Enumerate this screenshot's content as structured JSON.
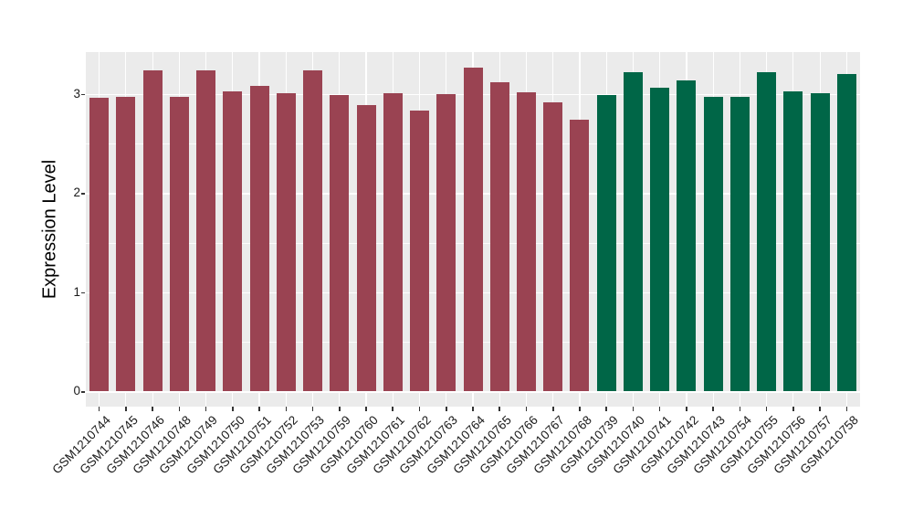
{
  "figure": {
    "background": "#FFFFFF",
    "panel_background": "#EBEBEB",
    "grid_color": "#FFFFFF",
    "axis_text_color": "#1A1A1A",
    "tick_mark_color": "#333333"
  },
  "chart_data": {
    "type": "bar",
    "title": "",
    "xlabel": "",
    "ylabel": "Expression Level",
    "ylim": [
      -0.15,
      3.42
    ],
    "yticks": [
      0,
      1,
      2,
      3
    ],
    "yticks_minor": [
      0.5,
      1.5,
      2.5
    ],
    "grid": "on",
    "legend_position": "none",
    "x_tick_angle_deg": 45,
    "group_colors": {
      "group1": "#9A4352",
      "group2": "#006647"
    },
    "bars": [
      {
        "label": "GSM1210744",
        "value": 2.96,
        "group": "group1"
      },
      {
        "label": "GSM1210745",
        "value": 2.97,
        "group": "group1"
      },
      {
        "label": "GSM1210746",
        "value": 3.24,
        "group": "group1"
      },
      {
        "label": "GSM1210748",
        "value": 2.97,
        "group": "group1"
      },
      {
        "label": "GSM1210749",
        "value": 3.24,
        "group": "group1"
      },
      {
        "label": "GSM1210750",
        "value": 3.03,
        "group": "group1"
      },
      {
        "label": "GSM1210751",
        "value": 3.08,
        "group": "group1"
      },
      {
        "label": "GSM1210752",
        "value": 3.01,
        "group": "group1"
      },
      {
        "label": "GSM1210753",
        "value": 3.24,
        "group": "group1"
      },
      {
        "label": "GSM1210759",
        "value": 2.99,
        "group": "group1"
      },
      {
        "label": "GSM1210760",
        "value": 2.89,
        "group": "group1"
      },
      {
        "label": "GSM1210761",
        "value": 3.01,
        "group": "group1"
      },
      {
        "label": "GSM1210762",
        "value": 2.83,
        "group": "group1"
      },
      {
        "label": "GSM1210763",
        "value": 3.0,
        "group": "group1"
      },
      {
        "label": "GSM1210764",
        "value": 3.27,
        "group": "group1"
      },
      {
        "label": "GSM1210765",
        "value": 3.12,
        "group": "group1"
      },
      {
        "label": "GSM1210766",
        "value": 3.02,
        "group": "group1"
      },
      {
        "label": "GSM1210767",
        "value": 2.92,
        "group": "group1"
      },
      {
        "label": "GSM1210768",
        "value": 2.74,
        "group": "group1"
      },
      {
        "label": "GSM1210739",
        "value": 2.99,
        "group": "group2"
      },
      {
        "label": "GSM1210740",
        "value": 3.22,
        "group": "group2"
      },
      {
        "label": "GSM1210741",
        "value": 3.06,
        "group": "group2"
      },
      {
        "label": "GSM1210742",
        "value": 3.14,
        "group": "group2"
      },
      {
        "label": "GSM1210743",
        "value": 2.97,
        "group": "group2"
      },
      {
        "label": "GSM1210754",
        "value": 2.97,
        "group": "group2"
      },
      {
        "label": "GSM1210755",
        "value": 3.22,
        "group": "group2"
      },
      {
        "label": "GSM1210756",
        "value": 3.03,
        "group": "group2"
      },
      {
        "label": "GSM1210757",
        "value": 3.01,
        "group": "group2"
      },
      {
        "label": "GSM1210758",
        "value": 3.2,
        "group": "group2"
      }
    ]
  }
}
